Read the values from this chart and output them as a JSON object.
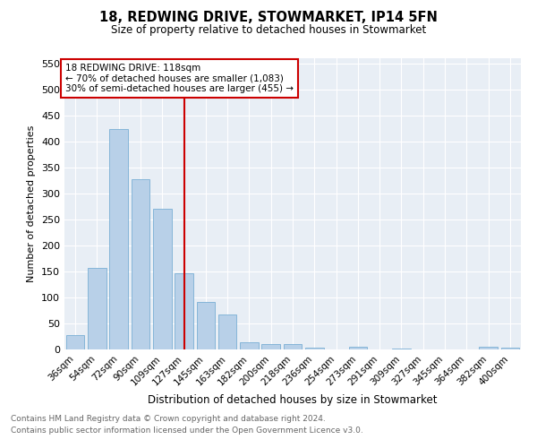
{
  "title": "18, REDWING DRIVE, STOWMARKET, IP14 5FN",
  "subtitle": "Size of property relative to detached houses in Stowmarket",
  "xlabel": "Distribution of detached houses by size in Stowmarket",
  "ylabel": "Number of detached properties",
  "categories": [
    "36sqm",
    "54sqm",
    "72sqm",
    "90sqm",
    "109sqm",
    "127sqm",
    "145sqm",
    "163sqm",
    "182sqm",
    "200sqm",
    "218sqm",
    "236sqm",
    "254sqm",
    "273sqm",
    "291sqm",
    "309sqm",
    "327sqm",
    "345sqm",
    "364sqm",
    "382sqm",
    "400sqm"
  ],
  "values": [
    28,
    156,
    424,
    328,
    270,
    146,
    92,
    67,
    14,
    10,
    11,
    4,
    0,
    5,
    0,
    1,
    0,
    0,
    0,
    5,
    4
  ],
  "bar_color": "#b8d0e8",
  "bar_edge_color": "#7aafd4",
  "property_label": "18 REDWING DRIVE: 118sqm",
  "annotation_line1": "← 70% of detached houses are smaller (1,083)",
  "annotation_line2": "30% of semi-detached houses are larger (455) →",
  "vline_color": "#cc0000",
  "box_color": "#cc0000",
  "ylim": [
    0,
    560
  ],
  "yticks": [
    0,
    50,
    100,
    150,
    200,
    250,
    300,
    350,
    400,
    450,
    500,
    550
  ],
  "background_color": "#e8eef5",
  "grid_color": "#ffffff",
  "footer_line1": "Contains HM Land Registry data © Crown copyright and database right 2024.",
  "footer_line2": "Contains public sector information licensed under the Open Government Licence v3.0."
}
